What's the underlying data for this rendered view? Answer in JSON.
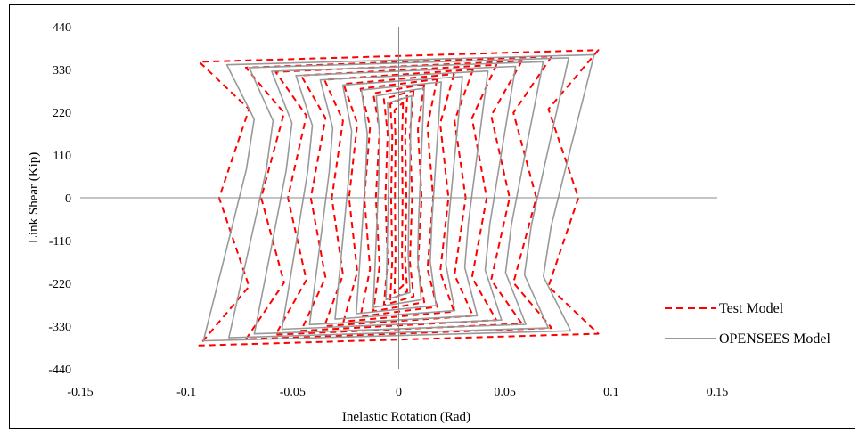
{
  "chart_data": {
    "type": "line",
    "title": "",
    "xlabel": "Inelastic Rotation (Rad)",
    "ylabel": "Link Shear (Kip)",
    "xlim": [
      -0.15,
      0.15
    ],
    "ylim": [
      -440,
      440
    ],
    "x_ticks": [
      "-0.15",
      "-0.1",
      "-0.05",
      "0",
      "0.05",
      "0.1",
      "0.15"
    ],
    "y_ticks": [
      "440",
      "330",
      "220",
      "110",
      "0",
      "-110",
      "-220",
      "-330",
      "-440"
    ],
    "legend_position": "right",
    "grid": false,
    "series": [
      {
        "name": "Test Model",
        "color": "#ff0000",
        "style": "dashed",
        "loops": [
          {
            "amp": 0.002,
            "peak": 245
          },
          {
            "amp": 0.004,
            "peak": 262
          },
          {
            "amp": 0.007,
            "peak": 276
          },
          {
            "amp": 0.012,
            "peak": 292
          },
          {
            "amp": 0.018,
            "peak": 305
          },
          {
            "amp": 0.026,
            "peak": 318
          },
          {
            "amp": 0.035,
            "peak": 330
          },
          {
            "amp": 0.046,
            "peak": 342
          },
          {
            "amp": 0.058,
            "peak": 352
          },
          {
            "amp": 0.072,
            "peak": 364
          },
          {
            "amp": 0.094,
            "peak": 380
          }
        ]
      },
      {
        "name": "OPENSEES Model",
        "color": "#999999",
        "style": "solid",
        "loops": [
          {
            "amp": 0.006,
            "peak": 262
          },
          {
            "amp": 0.012,
            "peak": 282
          },
          {
            "amp": 0.02,
            "peak": 298
          },
          {
            "amp": 0.03,
            "peak": 312
          },
          {
            "amp": 0.042,
            "peak": 326
          },
          {
            "amp": 0.055,
            "peak": 338
          },
          {
            "amp": 0.068,
            "peak": 350
          },
          {
            "amp": 0.08,
            "peak": 360
          },
          {
            "amp": 0.092,
            "peak": 368
          }
        ]
      }
    ]
  }
}
